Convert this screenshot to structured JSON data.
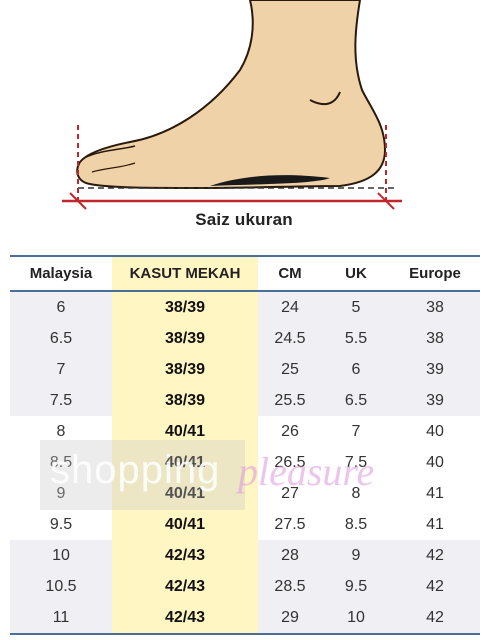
{
  "caption": "Saiz ukuran",
  "table": {
    "headers": [
      "Malaysia",
      "KASUT MEKAH",
      "CM",
      "UK",
      "Europe"
    ],
    "rows": [
      [
        "6",
        "38/39",
        "24",
        "5",
        "38"
      ],
      [
        "6.5",
        "38/39",
        "24.5",
        "5.5",
        "38"
      ],
      [
        "7",
        "38/39",
        "25",
        "6",
        "39"
      ],
      [
        "7.5",
        "38/39",
        "25.5",
        "6.5",
        "39"
      ],
      [
        "8",
        "40/41",
        "26",
        "7",
        "40"
      ],
      [
        "8.5",
        "40/41",
        "26.5",
        "7.5",
        "40"
      ],
      [
        "9",
        "40/41",
        "27",
        "8",
        "41"
      ],
      [
        "9.5",
        "40/41",
        "27.5",
        "8.5",
        "41"
      ],
      [
        "10",
        "42/43",
        "28",
        "9",
        "42"
      ],
      [
        "10.5",
        "42/43",
        "28.5",
        "9.5",
        "42"
      ],
      [
        "11",
        "42/43",
        "29",
        "10",
        "42"
      ]
    ]
  },
  "watermark": {
    "text1": "shopping",
    "text2": "pleasure"
  },
  "colors": {
    "highlight_column": "#fff6c4",
    "row_shade": "#efeff4",
    "rule": "#4a6e96",
    "measure_line": "#c0272d"
  }
}
